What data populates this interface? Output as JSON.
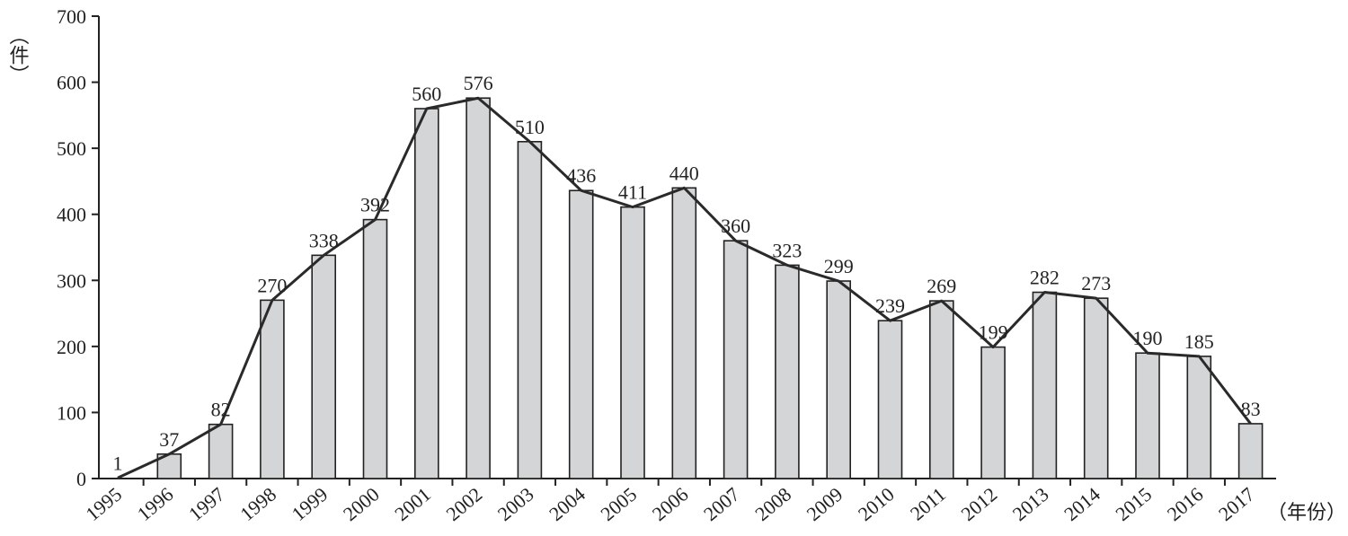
{
  "chart_data": {
    "type": "bar",
    "overlay": "line",
    "categories": [
      "1995",
      "1996",
      "1997",
      "1998",
      "1999",
      "2000",
      "2001",
      "2002",
      "2003",
      "2004",
      "2005",
      "2006",
      "2007",
      "2008",
      "2009",
      "2010",
      "2011",
      "2012",
      "2013",
      "2014",
      "2015",
      "2016",
      "2017"
    ],
    "values": [
      1,
      37,
      82,
      270,
      338,
      392,
      560,
      576,
      510,
      436,
      411,
      440,
      360,
      323,
      299,
      239,
      269,
      199,
      282,
      273,
      190,
      185,
      83
    ],
    "data_labels": [
      "1",
      "37",
      "82",
      "270",
      "338",
      "392",
      "560",
      "576",
      "510",
      "436",
      "411",
      "440",
      "360",
      "323",
      "299",
      "239",
      "269",
      "199",
      "282",
      "273",
      "190",
      "185",
      "83"
    ],
    "ylim": [
      0,
      700
    ],
    "yticks": [
      0,
      100,
      200,
      300,
      400,
      500,
      600,
      700
    ],
    "yticks_labels": [
      "0",
      "100",
      "200",
      "300",
      "400",
      "500",
      "600",
      "700"
    ],
    "ylabel": "（件）",
    "xlabel": "（年份）",
    "grid": false,
    "colors": {
      "bar_fill": "#d3d5d7",
      "bar_stroke": "#222222",
      "line": "#2a2a2a"
    }
  }
}
